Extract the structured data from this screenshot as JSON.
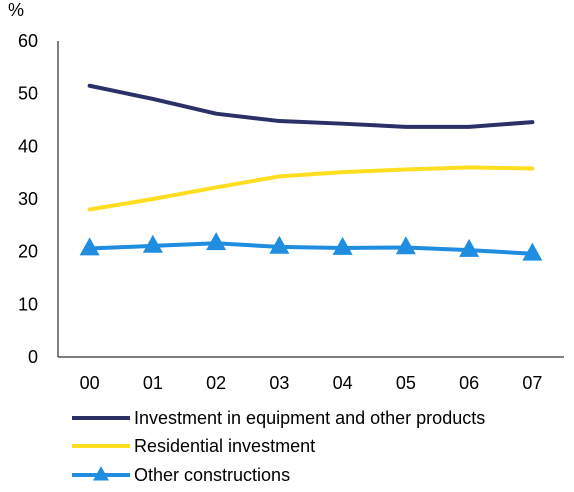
{
  "chart_data": {
    "type": "line",
    "title": "",
    "xlabel": "",
    "ylabel": "%",
    "categories": [
      "00",
      "01",
      "02",
      "03",
      "04",
      "05",
      "06",
      "07"
    ],
    "ylim": [
      0,
      60
    ],
    "yticks": [
      0,
      10,
      20,
      30,
      40,
      50,
      60
    ],
    "grid": false,
    "legend": "bottom",
    "series": [
      {
        "name": "Investment in equipment and other products",
        "color": "#2b3166",
        "marker": "none",
        "values": [
          51.5,
          49.0,
          46.2,
          44.8,
          44.3,
          43.7,
          43.7,
          44.6
        ]
      },
      {
        "name": "Residential investment",
        "color": "#ffdd1f",
        "marker": "none",
        "values": [
          28.0,
          30.0,
          32.2,
          34.3,
          35.1,
          35.6,
          36.0,
          35.8
        ]
      },
      {
        "name": "Other constructions",
        "color": "#1f8ee0",
        "marker": "triangle",
        "values": [
          20.6,
          21.1,
          21.6,
          20.9,
          20.7,
          20.8,
          20.3,
          19.6
        ]
      }
    ]
  }
}
